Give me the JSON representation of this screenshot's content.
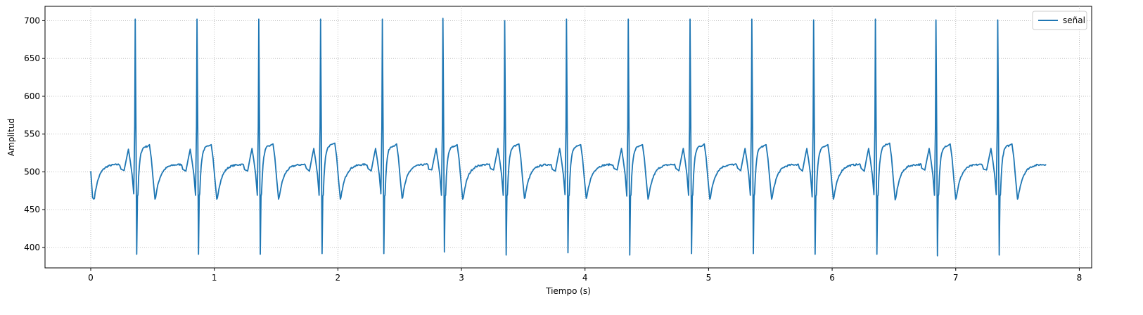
{
  "chart_data": {
    "type": "line",
    "title": "",
    "xlabel": "Tiempo (s)",
    "ylabel": "Amplitud",
    "xlim": [
      -0.37,
      8.1
    ],
    "ylim": [
      373,
      719
    ],
    "xticks": [
      0,
      1,
      2,
      3,
      4,
      5,
      6,
      7,
      8
    ],
    "yticks": [
      400,
      450,
      500,
      550,
      600,
      650,
      700
    ],
    "grid": true,
    "grid_style": "dotted",
    "legend": "top-right",
    "x_range": [
      0,
      7.73
    ],
    "series": [
      {
        "name": "señal",
        "color": "#1f77b4",
        "baseline": 510,
        "start_value": 501,
        "beat_times": [
          0.36,
          0.86,
          1.36,
          1.86,
          2.36,
          2.85,
          3.35,
          3.85,
          4.35,
          4.85,
          5.35,
          5.85,
          6.35,
          6.84,
          7.34
        ],
        "r_peaks": [
          702,
          702,
          702,
          702,
          702,
          703,
          700,
          702,
          702,
          702,
          702,
          701,
          702,
          701,
          701
        ],
        "s_troughs": [
          391,
          391,
          391,
          392,
          392,
          394,
          390,
          393,
          390,
          392,
          392,
          391,
          391,
          389,
          390
        ],
        "q_troughs": [
          471,
          469,
          469,
          469,
          471,
          469,
          469,
          470,
          468,
          469,
          469,
          467,
          470,
          469,
          470
        ],
        "p_peaks": [
          530,
          530,
          531,
          531,
          531,
          531,
          531,
          531,
          531,
          531,
          531,
          531,
          531,
          531,
          531
        ],
        "t_peaks": [
          536,
          536,
          537,
          538,
          537,
          536,
          537,
          536,
          536,
          537,
          536,
          536,
          538,
          537,
          537
        ],
        "post_t_troughs": [
          464,
          464,
          464,
          464,
          465,
          464,
          465,
          465,
          464,
          464,
          464,
          464,
          463,
          464,
          464
        ],
        "end_value": 510
      }
    ]
  }
}
